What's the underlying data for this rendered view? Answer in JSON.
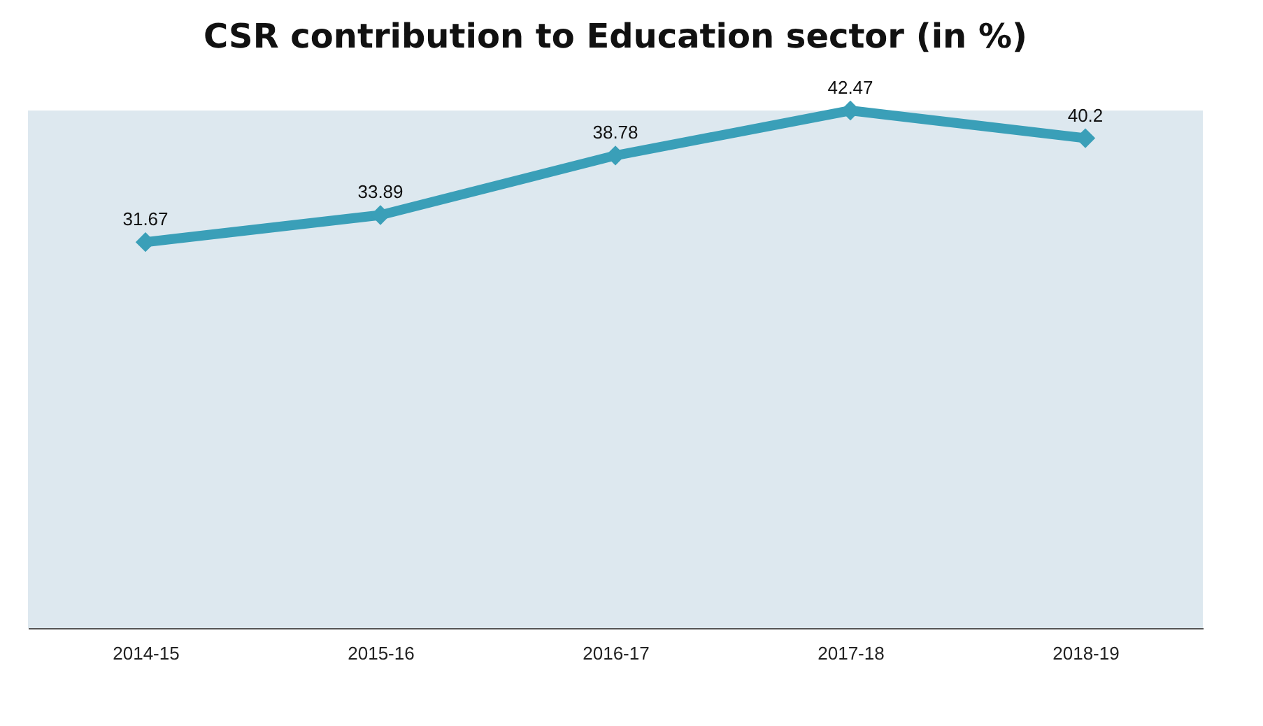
{
  "chart_data": {
    "type": "line",
    "title": "CSR contribution to Education sector (in %)",
    "categories": [
      "2014-15",
      "2015-16",
      "2016-17",
      "2017-18",
      "2018-19"
    ],
    "values": [
      31.67,
      33.89,
      38.78,
      42.47,
      40.2
    ],
    "color": "#3a9fb8",
    "data_labels": true,
    "marker": "diamond",
    "line_style": "solid",
    "grid": false
  }
}
